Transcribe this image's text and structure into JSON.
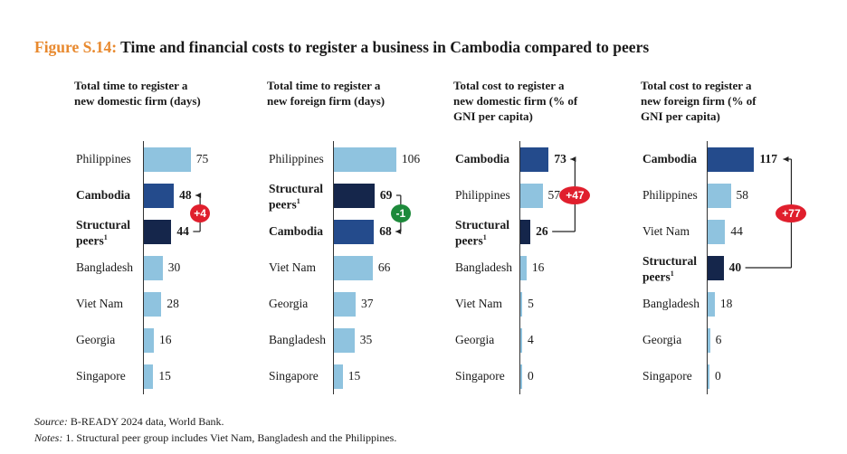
{
  "figure": {
    "label": "Figure S.14:",
    "title": "Time and financial costs to register a business in Cambodia compared to peers"
  },
  "colors": {
    "other": "#8fc3df",
    "cambodia": "#244b8c",
    "peers": "#15264b",
    "increase": "#e01f2d",
    "decrease": "#1d8a3b",
    "title_accent": "#e8892e"
  },
  "chart_data": [
    {
      "type": "bar",
      "orientation": "horizontal",
      "title": "Total time to register a new domestic firm (days)",
      "title_lines": [
        "Total time to register a",
        "new domestic firm (days)"
      ],
      "categories": [
        "Philippines",
        "Cambodia",
        "Structural peers¹",
        "Bangladesh",
        "Viet Nam",
        "Georgia",
        "Singapore"
      ],
      "values": [
        75,
        48,
        44,
        30,
        28,
        16,
        15
      ],
      "annotation": {
        "rows": [
          1,
          2
        ],
        "arrow_to": 1,
        "label": "+4",
        "color": "increase"
      }
    },
    {
      "type": "bar",
      "orientation": "horizontal",
      "title": "Total time to register a new foreign firm (days)",
      "title_lines": [
        "Total time to register a",
        "new foreign firm (days)"
      ],
      "categories": [
        "Philippines",
        "Structural peers¹",
        "Cambodia",
        "Viet Nam",
        "Georgia",
        "Bangladesh",
        "Singapore"
      ],
      "values": [
        106,
        69,
        68,
        66,
        37,
        35,
        15
      ],
      "annotation": {
        "rows": [
          1,
          2
        ],
        "arrow_to": 2,
        "label": "-1",
        "color": "decrease"
      }
    },
    {
      "type": "bar",
      "orientation": "horizontal",
      "title": "Total cost to register a new domestic firm (% of GNI per capita)",
      "title_lines": [
        "Total cost to register a",
        "new domestic firm (% of",
        "GNI per capita)"
      ],
      "categories": [
        "Cambodia",
        "Philippines",
        "Structural peers¹",
        "Bangladesh",
        "Viet Nam",
        "Georgia",
        "Singapore"
      ],
      "values": [
        73,
        57,
        26,
        16,
        5,
        4,
        0
      ],
      "annotation": {
        "rows": [
          0,
          2
        ],
        "arrow_to": 0,
        "label": "+47",
        "color": "increase"
      }
    },
    {
      "type": "bar",
      "orientation": "horizontal",
      "title": "Total cost to register a new foreign firm (% of GNI per capita)",
      "title_lines": [
        "Total cost to register a",
        "new foreign firm (% of",
        "GNI per capita)"
      ],
      "categories": [
        "Cambodia",
        "Philippines",
        "Viet Nam",
        "Structural peers¹",
        "Bangladesh",
        "Georgia",
        "Singapore"
      ],
      "values": [
        117,
        58,
        44,
        40,
        18,
        6,
        0
      ],
      "annotation": {
        "rows": [
          0,
          3
        ],
        "arrow_to": 0,
        "label": "+77",
        "color": "increase"
      }
    }
  ],
  "notes": {
    "source_label": "Source:",
    "source_text": " B-READY 2024 data, World Bank.",
    "notes_label": "Notes:",
    "notes_text": " 1. Structural peer group includes Viet Nam, Bangladesh and the Philippines."
  }
}
